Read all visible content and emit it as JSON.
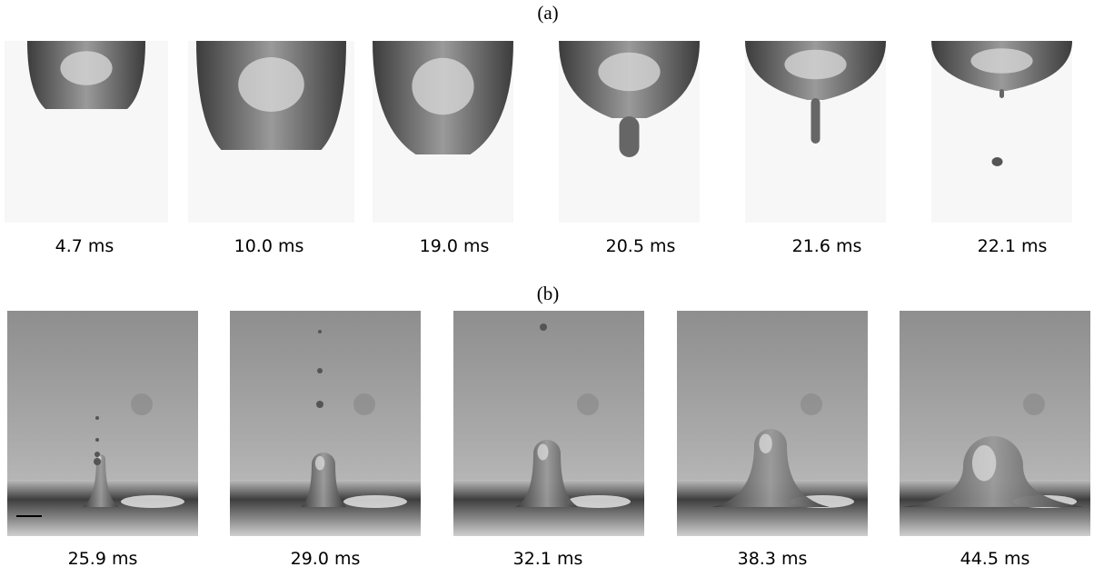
{
  "panels": [
    {
      "label": "(a)",
      "frames": [
        "4.7 ms",
        "10.0 ms",
        "19.0 ms",
        "20.5 ms",
        "21.6 ms",
        "22.1 ms"
      ]
    },
    {
      "label": "(b)",
      "frames": [
        "25.9 ms",
        "29.0 ms",
        "32.1 ms",
        "38.3 ms",
        "44.5 ms"
      ]
    }
  ]
}
